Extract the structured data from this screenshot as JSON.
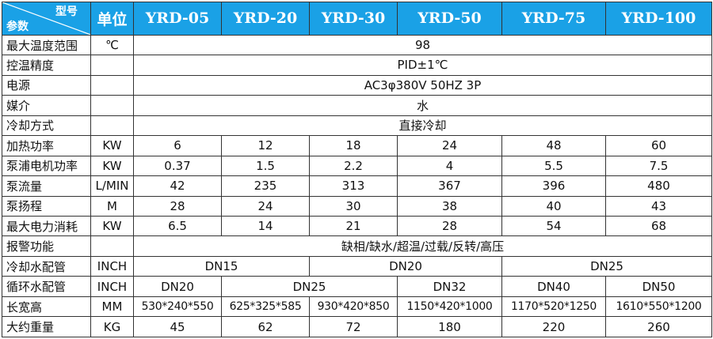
{
  "header": {
    "model_word": "型号",
    "param_word": "参数",
    "unit": "单位",
    "models": [
      "YRD-05",
      "YRD-20",
      "YRD-30",
      "YRD-50",
      "YRD-75",
      "YRD-100"
    ]
  },
  "rows": {
    "max_temp": {
      "label": "最大温度范围",
      "unit": "℃",
      "value": "98"
    },
    "temp_accuracy": {
      "label": "控温精度",
      "unit": "",
      "value": "PID±1℃"
    },
    "power_supply": {
      "label": "电源",
      "unit": "",
      "value": "AC3φ380V 50HZ 3P"
    },
    "medium": {
      "label": "媒介",
      "unit": "",
      "value": "水"
    },
    "cooling_method": {
      "label": "冷却方式",
      "unit": "",
      "value": "直接冷却"
    },
    "heating_power": {
      "label": "加热功率",
      "unit": "KW",
      "values": [
        "6",
        "12",
        "18",
        "24",
        "48",
        "60"
      ]
    },
    "pump_power": {
      "label": "泵浦电机功率",
      "unit": "KW",
      "values": [
        "0.37",
        "1.5",
        "2.2",
        "4",
        "5.5",
        "7.5"
      ]
    },
    "pump_flow": {
      "label": "泵流量",
      "unit": "L/MIN",
      "values": [
        "42",
        "235",
        "313",
        "367",
        "396",
        "480"
      ]
    },
    "pump_head": {
      "label": "泵扬程",
      "unit": "M",
      "values": [
        "28",
        "24",
        "30",
        "38",
        "40",
        "43"
      ]
    },
    "max_consumption": {
      "label": "最大电力消耗",
      "unit": "KW",
      "values": [
        "6.5",
        "14",
        "21",
        "28",
        "54",
        "68"
      ]
    },
    "alarm": {
      "label": "报警功能",
      "unit": "",
      "value": "缺相/缺水/超温/过载/反转/高压"
    },
    "cooling_pipe": {
      "label": "冷却水配管",
      "unit": "INCH",
      "values": [
        "DN15",
        "DN20",
        "DN25"
      ]
    },
    "circulation_pipe": {
      "label": "循环水配管",
      "unit": "INCH",
      "values": [
        "DN20",
        "DN25",
        "DN32",
        "DN40",
        "DN50"
      ]
    },
    "dimensions": {
      "label": "长宽高",
      "unit": "MM",
      "values": [
        "530*240*550",
        "625*325*585",
        "930*420*850",
        "1150*420*1000",
        "1170*520*1250",
        "1610*550*1200"
      ]
    },
    "weight": {
      "label": "大约重量",
      "unit": "KG",
      "values": [
        "45",
        "62",
        "72",
        "180",
        "220",
        "260"
      ]
    }
  }
}
